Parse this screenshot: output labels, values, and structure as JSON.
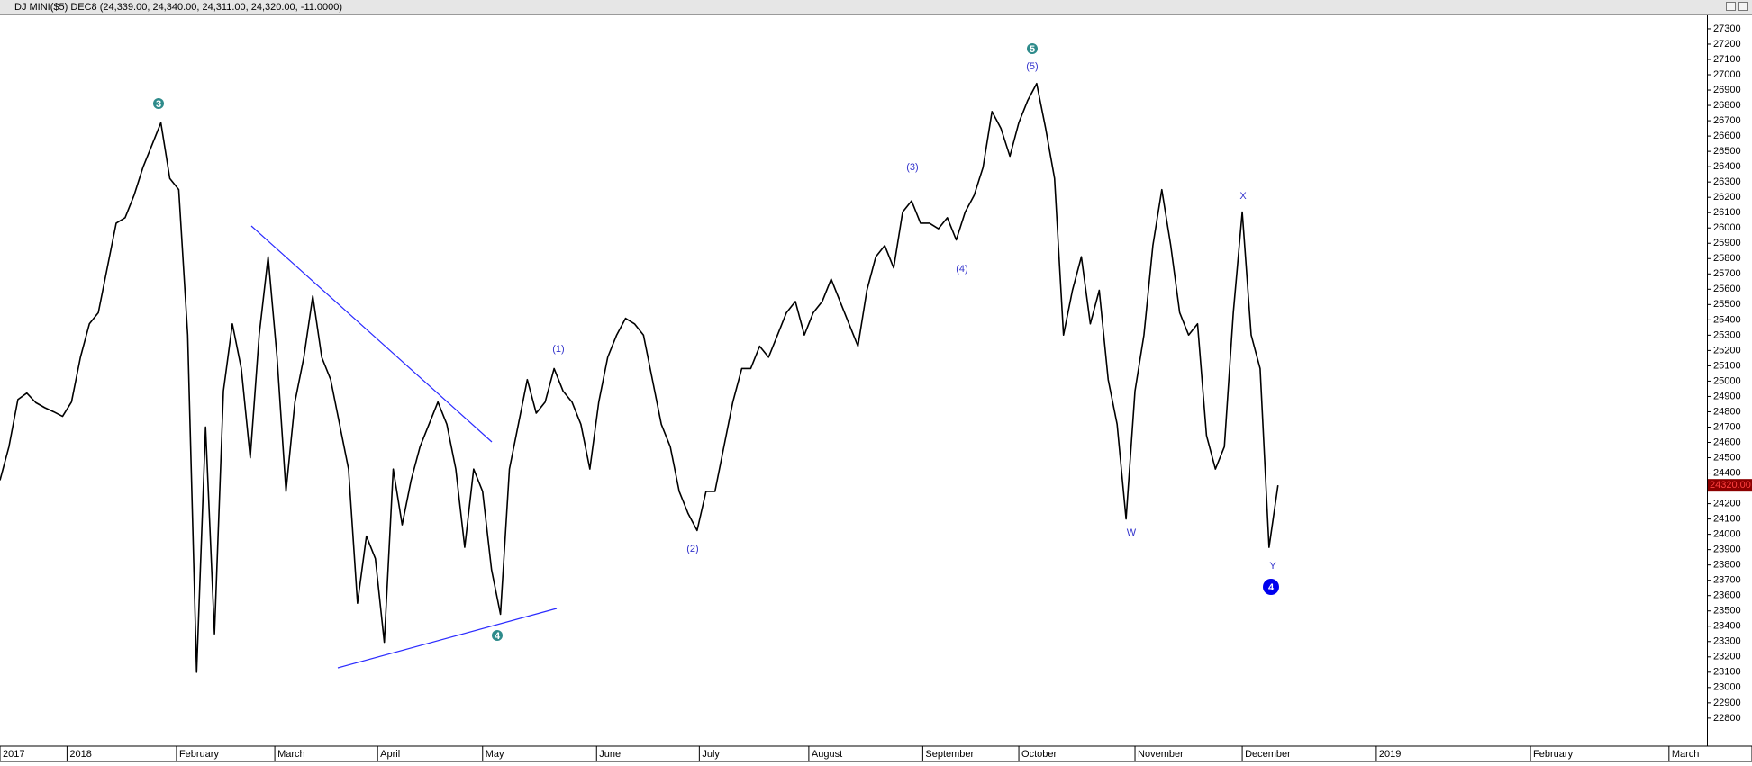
{
  "window_title": "DJ MINI($5) DEC8 (24,339.00, 24,340.00, 24,311.00, 24,320.00, -11.0000)",
  "chart_data": {
    "type": "line",
    "series": [
      {
        "color": "#000000",
        "values": [
          24353,
          24572,
          24880,
          24922,
          24860,
          24827,
          24800,
          24770,
          24864,
          25156,
          25374,
          25447,
          25739,
          26031,
          26067,
          26213,
          26396,
          26541,
          26687,
          26323,
          26250,
          25301,
          23100,
          24700,
          23350,
          24936,
          25374,
          25082,
          24499,
          25301,
          25812,
          25156,
          24280,
          24864,
          25156,
          25556,
          25156,
          25010,
          24718,
          24426,
          23550,
          23988,
          23842,
          23295,
          24426,
          24062,
          24353,
          24572,
          24718,
          24864,
          24718,
          24426,
          23915,
          24426,
          24280,
          23769,
          23478,
          24426,
          24718,
          25010,
          24791,
          24864,
          25082,
          24936,
          24864,
          24718,
          24426,
          24864,
          25156,
          25301,
          25410,
          25374,
          25301,
          25010,
          24718,
          24572,
          24280,
          24135,
          24025,
          24280,
          24280,
          24572,
          24864,
          25082,
          25082,
          25228,
          25156,
          25301,
          25447,
          25520,
          25301,
          25447,
          25520,
          25666,
          25520,
          25374,
          25228,
          25593,
          25812,
          25885,
          25739,
          26104,
          26177,
          26031,
          26031,
          25995,
          26067,
          25922,
          26104,
          26213,
          26396,
          26760,
          26650,
          26468,
          26687,
          26833,
          26943,
          26650,
          26323,
          25301,
          25593,
          25812,
          25374,
          25593,
          25010,
          24718,
          24100,
          24936,
          25301,
          25885,
          26250,
          25885,
          25447,
          25301,
          25374,
          24645,
          24426,
          24572,
          25447,
          26104,
          25301,
          25082,
          23915,
          24320
        ]
      }
    ],
    "xlim": [
      0,
      191
    ],
    "xticks": [
      {
        "value": 0,
        "label": "2017"
      },
      {
        "value": 7.5,
        "label": "2018"
      },
      {
        "value": 19.75,
        "label": "February"
      },
      {
        "value": 30.75,
        "label": "March"
      },
      {
        "value": 42.25,
        "label": "April"
      },
      {
        "value": 54,
        "label": "May"
      },
      {
        "value": 66.75,
        "label": "June"
      },
      {
        "value": 78.25,
        "label": "July"
      },
      {
        "value": 90.5,
        "label": "August"
      },
      {
        "value": 103.25,
        "label": "September"
      },
      {
        "value": 114,
        "label": "October"
      },
      {
        "value": 127,
        "label": "November"
      },
      {
        "value": 139,
        "label": "December"
      },
      {
        "value": 154,
        "label": "2019"
      },
      {
        "value": 171.25,
        "label": "February"
      },
      {
        "value": 186.75,
        "label": "March"
      }
    ],
    "ylim": [
      22623,
      27382
    ],
    "yticks": [
      22800,
      22900,
      23000,
      23100,
      23200,
      23300,
      23400,
      23500,
      23600,
      23700,
      23800,
      23900,
      24000,
      24100,
      24200,
      24300,
      24400,
      24500,
      24600,
      24700,
      24800,
      24900,
      25000,
      25100,
      25200,
      25300,
      25400,
      25500,
      25600,
      25700,
      25800,
      25900,
      26000,
      26100,
      26200,
      26300,
      26400,
      26500,
      26600,
      26700,
      26800,
      26900,
      27000,
      27100,
      27200,
      27300
    ],
    "grid": false,
    "last_value": {
      "value": 24320,
      "label": "24320.00"
    },
    "annotations": [
      {
        "text": "3",
        "style": "circle"
      },
      {
        "text": "(1)",
        "style": "plain"
      },
      {
        "text": "4",
        "style": "circle"
      },
      {
        "text": "(2)",
        "style": "plain"
      },
      {
        "text": "(3)",
        "style": "plain"
      },
      {
        "text": "(4)",
        "style": "plain"
      },
      {
        "text": "5",
        "style": "circle"
      },
      {
        "text": "(5)",
        "style": "plain"
      },
      {
        "text": "W",
        "style": "plain"
      },
      {
        "text": "X",
        "style": "plain"
      },
      {
        "text": "Y",
        "style": "plain"
      },
      {
        "text": "4",
        "style": "filled-circle"
      }
    ]
  }
}
